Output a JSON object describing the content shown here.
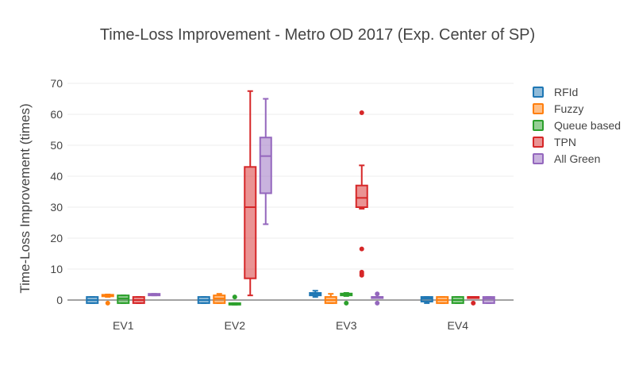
{
  "chart_data": {
    "type": "box",
    "title": "Time-Loss Improvement - Metro OD 2017 (Exp. Center of SP)",
    "xlabel": "",
    "ylabel": "Time-Loss Improvement (times)",
    "ylim": [
      -4,
      72
    ],
    "yticks": [
      0,
      10,
      20,
      30,
      40,
      50,
      60,
      70
    ],
    "grid": true,
    "legend_position": "right",
    "categories": [
      "EV1",
      "EV2",
      "EV3",
      "EV4"
    ],
    "series": [
      {
        "name": "RFId",
        "color": "#1f77b4",
        "boxes": [
          {
            "min": -1,
            "q1": -1,
            "median": 0,
            "q3": 1,
            "max": 1,
            "outliers": []
          },
          {
            "min": -1,
            "q1": -1,
            "median": 0,
            "q3": 1,
            "max": 1,
            "outliers": []
          },
          {
            "min": 1,
            "q1": 1.5,
            "median": 2,
            "q3": 2.3,
            "max": 3,
            "outliers": []
          },
          {
            "min": -1,
            "q1": -0.5,
            "median": 0.5,
            "q3": 1,
            "max": 1,
            "outliers": []
          }
        ]
      },
      {
        "name": "Fuzzy",
        "color": "#ff7f0e",
        "boxes": [
          {
            "min": 1,
            "q1": 1.2,
            "median": 1.5,
            "q3": 1.7,
            "max": 1.8,
            "outliers": [
              -1
            ]
          },
          {
            "min": -1,
            "q1": -1,
            "median": 0.5,
            "q3": 1.5,
            "max": 2,
            "outliers": []
          },
          {
            "min": -1,
            "q1": -1,
            "median": 0,
            "q3": 1,
            "max": 2,
            "outliers": []
          },
          {
            "min": -1,
            "q1": -1,
            "median": 0,
            "q3": 1,
            "max": 1,
            "outliers": []
          }
        ]
      },
      {
        "name": "Queue based",
        "color": "#2ca02c",
        "boxes": [
          {
            "min": -1,
            "q1": -1,
            "median": 0.5,
            "q3": 1.5,
            "max": 1.5,
            "outliers": []
          },
          {
            "min": -1.5,
            "q1": -1.5,
            "median": -1.2,
            "q3": -1,
            "max": -1,
            "outliers": [
              1
            ]
          },
          {
            "min": 1.3,
            "q1": 1.5,
            "median": 1.8,
            "q3": 2.1,
            "max": 2.3,
            "outliers": [
              -1
            ]
          },
          {
            "min": -1,
            "q1": -1,
            "median": 0,
            "q3": 1,
            "max": 1,
            "outliers": []
          }
        ]
      },
      {
        "name": "TPN",
        "color": "#d62728",
        "boxes": [
          {
            "min": -1,
            "q1": -1,
            "median": 0,
            "q3": 1,
            "max": 1,
            "outliers": []
          },
          {
            "min": 1.5,
            "q1": 7,
            "median": 30,
            "q3": 43,
            "max": 67.5,
            "outliers": []
          },
          {
            "min": 29.5,
            "q1": 30,
            "median": 33,
            "q3": 37,
            "max": 43.5,
            "outliers": [
              60.5,
              16.5,
              9,
              8.5,
              8
            ]
          },
          {
            "min": 1,
            "q1": 1,
            "median": 1,
            "q3": 1,
            "max": 1,
            "outliers": [
              -1
            ]
          }
        ]
      },
      {
        "name": "All Green",
        "color": "#9467bd",
        "boxes": [
          {
            "min": 1.5,
            "q1": 1.5,
            "median": 1.7,
            "q3": 2,
            "max": 2,
            "outliers": []
          },
          {
            "min": 24.5,
            "q1": 34.5,
            "median": 46.5,
            "q3": 52.5,
            "max": 65,
            "outliers": []
          },
          {
            "min": 1,
            "q1": 1,
            "median": 1,
            "q3": 1,
            "max": 1,
            "outliers": [
              2,
              -1
            ]
          },
          {
            "min": -1,
            "q1": -1,
            "median": 0.5,
            "q3": 1,
            "max": 1,
            "outliers": []
          }
        ]
      }
    ]
  }
}
